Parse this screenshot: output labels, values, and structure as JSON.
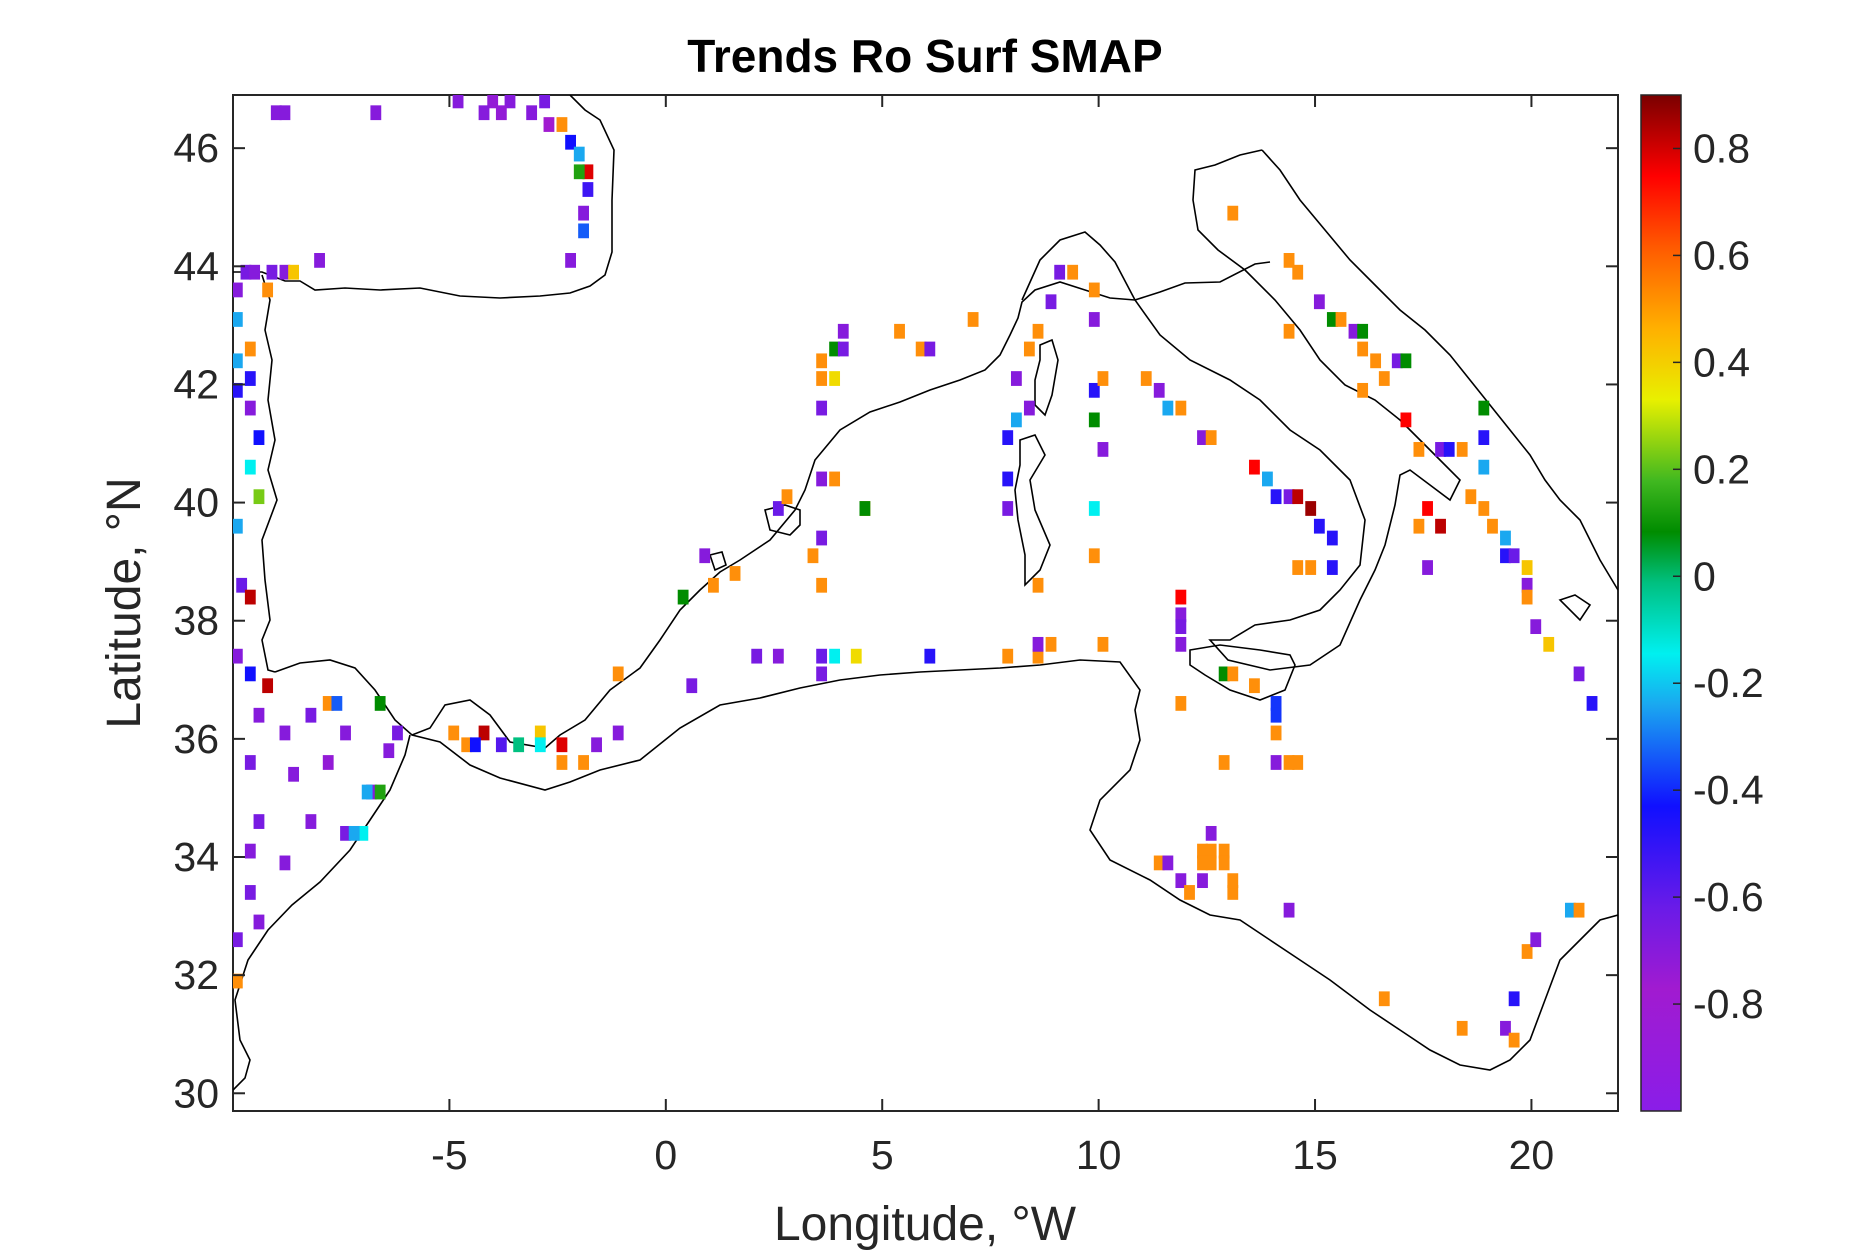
{
  "chart_data": {
    "type": "heatmap",
    "title": "Trends Ro Surf SMAP",
    "xlabel": "Longitude, °W",
    "ylabel": "Latitude, °N",
    "xlim": [
      -10,
      22
    ],
    "ylim": [
      29.7,
      46.9
    ],
    "xticks": [
      -5,
      0,
      5,
      10,
      15,
      20
    ],
    "yticks": [
      30,
      32,
      34,
      36,
      38,
      40,
      42,
      44,
      46
    ],
    "colorbar": {
      "range": [
        -1.0,
        0.9
      ],
      "ticks": [
        0.8,
        0.6,
        0.4,
        0.2,
        0,
        -0.2,
        -0.4,
        -0.6,
        -0.8
      ],
      "colormap": "jet-like (violet → blue → cyan → green → yellow → orange → red → dark red)"
    },
    "grid_step_deg": 0.25,
    "cells": [
      [
        -9.0,
        46.6,
        -0.7
      ],
      [
        -8.8,
        46.6,
        -0.7
      ],
      [
        -6.7,
        46.6,
        -0.7
      ],
      [
        -4.8,
        46.8,
        -0.7
      ],
      [
        -4.0,
        46.8,
        -0.75
      ],
      [
        -3.6,
        46.8,
        -0.7
      ],
      [
        -4.2,
        46.6,
        -0.7
      ],
      [
        -3.8,
        46.6,
        -0.75
      ],
      [
        -3.1,
        46.6,
        -0.7
      ],
      [
        -2.8,
        46.8,
        -0.65
      ],
      [
        -2.7,
        46.4,
        -0.8
      ],
      [
        -2.4,
        46.4,
        0.5
      ],
      [
        -2.2,
        46.1,
        -0.4
      ],
      [
        -2.0,
        45.9,
        -0.2
      ],
      [
        -1.8,
        45.6,
        0.75
      ],
      [
        -2.0,
        45.6,
        0.1
      ],
      [
        -1.8,
        45.3,
        -0.5
      ],
      [
        -1.9,
        44.9,
        -0.7
      ],
      [
        -1.9,
        44.6,
        -0.3
      ],
      [
        -2.2,
        44.1,
        -0.7
      ],
      [
        -9.7,
        43.9,
        -0.65
      ],
      [
        -9.5,
        43.9,
        -0.7
      ],
      [
        -9.1,
        43.9,
        -0.65
      ],
      [
        -8.8,
        43.9,
        -0.7
      ],
      [
        -8.6,
        43.9,
        0.4
      ],
      [
        -8.0,
        44.1,
        -0.7
      ],
      [
        -9.9,
        43.6,
        -0.7
      ],
      [
        -9.2,
        43.6,
        0.5
      ],
      [
        -9.9,
        43.1,
        -0.2
      ],
      [
        -9.6,
        42.6,
        0.5
      ],
      [
        -9.9,
        42.4,
        -0.2
      ],
      [
        -9.6,
        42.1,
        -0.45
      ],
      [
        -9.9,
        41.9,
        -0.45
      ],
      [
        -9.6,
        41.6,
        -0.7
      ],
      [
        -9.4,
        41.1,
        -0.4
      ],
      [
        -9.6,
        40.6,
        -0.15
      ],
      [
        -9.4,
        40.1,
        0.2
      ],
      [
        -9.9,
        39.6,
        -0.2
      ],
      [
        -9.8,
        38.6,
        -0.6
      ],
      [
        -9.6,
        38.4,
        0.8
      ],
      [
        -9.9,
        37.4,
        -0.7
      ],
      [
        -9.6,
        37.1,
        -0.4
      ],
      [
        -9.2,
        36.9,
        0.8
      ],
      [
        -9.4,
        36.4,
        -0.7
      ],
      [
        -8.8,
        36.1,
        -0.7
      ],
      [
        -8.2,
        36.4,
        -0.65
      ],
      [
        -7.4,
        36.1,
        -0.7
      ],
      [
        -9.6,
        35.6,
        -0.65
      ],
      [
        -8.6,
        35.4,
        -0.7
      ],
      [
        -7.8,
        35.6,
        -0.75
      ],
      [
        -6.8,
        35.1,
        -0.7
      ],
      [
        -9.4,
        34.6,
        -0.65
      ],
      [
        -8.2,
        34.6,
        -0.7
      ],
      [
        -7.4,
        34.4,
        -0.65
      ],
      [
        -9.6,
        34.1,
        -0.7
      ],
      [
        -8.8,
        33.9,
        -0.7
      ],
      [
        -9.6,
        33.4,
        -0.65
      ],
      [
        -9.4,
        32.9,
        -0.7
      ],
      [
        -9.9,
        32.6,
        -0.65
      ],
      [
        -9.9,
        31.9,
        0.5
      ],
      [
        -7.8,
        36.6,
        0.5
      ],
      [
        -7.6,
        36.6,
        -0.3
      ],
      [
        -6.6,
        36.6,
        0.05
      ],
      [
        -6.2,
        36.1,
        -0.65
      ],
      [
        -6.4,
        35.8,
        -0.7
      ],
      [
        -6.9,
        35.1,
        -0.2
      ],
      [
        -6.6,
        35.1,
        0.1
      ],
      [
        -7.0,
        34.4,
        -0.15
      ],
      [
        -7.2,
        34.4,
        -0.2
      ],
      [
        -4.9,
        36.1,
        0.5
      ],
      [
        -4.6,
        35.9,
        0.5
      ],
      [
        -4.2,
        36.1,
        0.8
      ],
      [
        -4.4,
        35.9,
        -0.4
      ],
      [
        -3.8,
        35.9,
        -0.55
      ],
      [
        -3.4,
        35.9,
        -0.05
      ],
      [
        -2.9,
        36.1,
        0.4
      ],
      [
        -2.9,
        35.9,
        -0.15
      ],
      [
        -2.4,
        35.9,
        0.75
      ],
      [
        -2.4,
        35.6,
        0.5
      ],
      [
        -1.9,
        35.6,
        0.5
      ],
      [
        -1.6,
        35.9,
        -0.7
      ],
      [
        -1.1,
        36.1,
        -0.7
      ],
      [
        -1.1,
        37.1,
        0.5
      ],
      [
        0.6,
        36.9,
        -0.65
      ],
      [
        0.4,
        38.4,
        0.05
      ],
      [
        0.9,
        39.1,
        -0.7
      ],
      [
        1.1,
        38.6,
        0.5
      ],
      [
        1.6,
        38.8,
        0.5
      ],
      [
        2.6,
        39.9,
        -0.6
      ],
      [
        2.6,
        37.4,
        -0.7
      ],
      [
        2.1,
        37.4,
        -0.65
      ],
      [
        3.6,
        37.1,
        -0.65
      ],
      [
        3.4,
        39.1,
        0.5
      ],
      [
        2.8,
        40.1,
        0.5
      ],
      [
        3.6,
        37.4,
        -0.6
      ],
      [
        3.9,
        37.4,
        -0.15
      ],
      [
        4.4,
        37.4,
        0.35
      ],
      [
        3.6,
        38.6,
        0.5
      ],
      [
        3.6,
        39.4,
        -0.65
      ],
      [
        3.6,
        40.4,
        -0.7
      ],
      [
        3.9,
        40.4,
        0.5
      ],
      [
        4.6,
        39.9,
        0.5
      ],
      [
        4.6,
        39.9,
        0.05
      ],
      [
        3.6,
        41.6,
        -0.65
      ],
      [
        3.6,
        42.4,
        0.5
      ],
      [
        3.9,
        42.1,
        0.35
      ],
      [
        3.6,
        42.1,
        0.5
      ],
      [
        3.9,
        42.6,
        0.05
      ],
      [
        4.1,
        42.9,
        -0.7
      ],
      [
        4.1,
        42.6,
        -0.65
      ],
      [
        5.4,
        42.9,
        0.5
      ],
      [
        5.9,
        42.6,
        0.5
      ],
      [
        6.1,
        42.6,
        -0.65
      ],
      [
        7.1,
        43.1,
        0.5
      ],
      [
        6.1,
        37.4,
        -0.45
      ],
      [
        7.9,
        37.4,
        0.5
      ],
      [
        8.6,
        37.4,
        0.5
      ],
      [
        8.6,
        37.6,
        -0.7
      ],
      [
        8.9,
        37.6,
        0.5
      ],
      [
        8.6,
        38.6,
        0.5
      ],
      [
        7.9,
        39.9,
        -0.65
      ],
      [
        7.9,
        40.4,
        -0.45
      ],
      [
        7.9,
        41.1,
        -0.45
      ],
      [
        8.1,
        41.4,
        -0.2
      ],
      [
        8.4,
        41.6,
        -0.7
      ],
      [
        8.1,
        42.1,
        -0.7
      ],
      [
        8.4,
        42.6,
        0.5
      ],
      [
        8.6,
        42.9,
        0.5
      ],
      [
        8.9,
        43.4,
        -0.65
      ],
      [
        9.1,
        43.9,
        -0.65
      ],
      [
        9.4,
        43.9,
        0.5
      ],
      [
        9.9,
        43.6,
        0.5
      ],
      [
        9.9,
        43.1,
        -0.7
      ],
      [
        9.9,
        41.9,
        -0.45
      ],
      [
        10.1,
        42.1,
        0.5
      ],
      [
        9.9,
        41.4,
        0.05
      ],
      [
        9.9,
        39.9,
        -0.15
      ],
      [
        10.1,
        40.9,
        -0.7
      ],
      [
        9.9,
        39.1,
        0.5
      ],
      [
        10.1,
        37.6,
        0.5
      ],
      [
        11.1,
        42.1,
        0.5
      ],
      [
        11.4,
        41.9,
        -0.7
      ],
      [
        11.6,
        41.6,
        -0.2
      ],
      [
        11.9,
        41.6,
        0.5
      ],
      [
        12.4,
        41.1,
        -0.7
      ],
      [
        12.6,
        41.1,
        0.5
      ],
      [
        13.6,
        40.6,
        0.7
      ],
      [
        13.9,
        40.4,
        -0.2
      ],
      [
        14.1,
        40.1,
        -0.45
      ],
      [
        14.4,
        40.1,
        -0.65
      ],
      [
        14.6,
        40.1,
        0.8
      ],
      [
        14.9,
        39.9,
        0.85
      ],
      [
        15.1,
        39.6,
        -0.45
      ],
      [
        15.4,
        39.4,
        -0.45
      ],
      [
        14.6,
        38.9,
        0.5
      ],
      [
        14.9,
        38.9,
        0.5
      ],
      [
        15.4,
        38.9,
        -0.45
      ],
      [
        11.9,
        38.4,
        0.7
      ],
      [
        11.9,
        38.1,
        -0.7
      ],
      [
        11.9,
        37.9,
        -0.65
      ],
      [
        11.9,
        37.6,
        -0.7
      ],
      [
        11.9,
        36.6,
        0.5
      ],
      [
        12.9,
        37.1,
        0.05
      ],
      [
        13.1,
        37.1,
        0.5
      ],
      [
        13.6,
        36.9,
        0.5
      ],
      [
        14.1,
        36.6,
        -0.35
      ],
      [
        14.1,
        36.4,
        -0.35
      ],
      [
        14.1,
        36.1,
        0.5
      ],
      [
        14.4,
        35.6,
        0.5
      ],
      [
        14.1,
        35.6,
        -0.7
      ],
      [
        14.6,
        35.6,
        0.5
      ],
      [
        12.9,
        35.6,
        0.5
      ],
      [
        13.1,
        44.9,
        0.5
      ],
      [
        14.4,
        44.1,
        0.5
      ],
      [
        14.6,
        43.9,
        0.5
      ],
      [
        14.4,
        42.9,
        0.5
      ],
      [
        15.1,
        43.4,
        -0.7
      ],
      [
        15.4,
        43.1,
        0.05
      ],
      [
        15.6,
        43.1,
        0.5
      ],
      [
        15.9,
        42.9,
        -0.7
      ],
      [
        16.1,
        42.6,
        0.5
      ],
      [
        16.1,
        42.9,
        0.05
      ],
      [
        16.4,
        42.4,
        0.5
      ],
      [
        16.9,
        42.4,
        -0.65
      ],
      [
        17.1,
        42.4,
        0.05
      ],
      [
        16.1,
        41.9,
        0.5
      ],
      [
        16.6,
        42.1,
        0.5
      ],
      [
        17.1,
        41.4,
        0.7
      ],
      [
        17.4,
        40.9,
        0.5
      ],
      [
        17.9,
        40.9,
        -0.65
      ],
      [
        18.1,
        40.9,
        -0.45
      ],
      [
        18.4,
        40.9,
        0.5
      ],
      [
        18.9,
        40.6,
        -0.2
      ],
      [
        18.9,
        41.6,
        0.05
      ],
      [
        18.9,
        41.1,
        -0.45
      ],
      [
        18.6,
        40.1,
        0.5
      ],
      [
        18.9,
        39.9,
        0.5
      ],
      [
        17.6,
        39.9,
        0.7
      ],
      [
        17.9,
        39.6,
        0.8
      ],
      [
        17.4,
        39.6,
        0.5
      ],
      [
        17.6,
        38.9,
        -0.7
      ],
      [
        19.1,
        39.6,
        0.5
      ],
      [
        19.4,
        39.4,
        -0.2
      ],
      [
        19.4,
        39.1,
        -0.45
      ],
      [
        19.6,
        39.1,
        -0.6
      ],
      [
        19.9,
        38.9,
        0.4
      ],
      [
        19.9,
        38.6,
        -0.7
      ],
      [
        19.9,
        38.4,
        0.5
      ],
      [
        20.1,
        37.9,
        -0.7
      ],
      [
        20.4,
        37.6,
        0.4
      ],
      [
        21.1,
        37.1,
        -0.65
      ],
      [
        21.4,
        36.6,
        -0.45
      ],
      [
        11.4,
        33.9,
        0.5
      ],
      [
        11.9,
        33.6,
        -0.7
      ],
      [
        11.6,
        33.9,
        -0.7
      ],
      [
        12.4,
        34.1,
        0.5
      ],
      [
        12.6,
        34.1,
        0.5
      ],
      [
        12.9,
        34.1,
        0.5
      ],
      [
        12.4,
        33.9,
        0.5
      ],
      [
        12.6,
        33.9,
        0.5
      ],
      [
        12.9,
        33.9,
        0.5
      ],
      [
        12.6,
        34.4,
        -0.7
      ],
      [
        12.4,
        33.6,
        -0.7
      ],
      [
        12.1,
        33.4,
        0.5
      ],
      [
        13.1,
        33.4,
        0.5
      ],
      [
        13.1,
        33.6,
        0.5
      ],
      [
        14.4,
        33.1,
        -0.7
      ],
      [
        16.6,
        31.6,
        0.5
      ],
      [
        18.4,
        31.1,
        0.5
      ],
      [
        19.4,
        31.1,
        -0.7
      ],
      [
        19.6,
        30.9,
        0.5
      ],
      [
        19.6,
        31.6,
        -0.45
      ],
      [
        19.9,
        32.4,
        0.5
      ],
      [
        20.1,
        32.6,
        -0.7
      ],
      [
        20.9,
        33.1,
        -0.2
      ],
      [
        21.1,
        33.1,
        0.5
      ]
    ]
  }
}
